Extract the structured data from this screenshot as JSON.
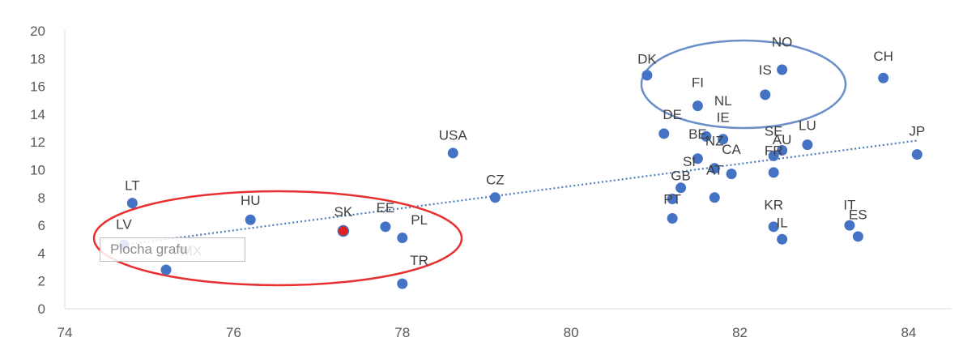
{
  "chart_data": {
    "type": "scatter",
    "xlim": [
      74,
      84.5
    ],
    "ylim": [
      0,
      20
    ],
    "x_ticks": [
      74,
      76,
      78,
      80,
      82,
      84
    ],
    "y_ticks": [
      0,
      2,
      4,
      6,
      8,
      10,
      12,
      14,
      16,
      18,
      20
    ],
    "grid": false,
    "trendline": {
      "style": "dotted",
      "color": "#4A7EBB",
      "from": [
        74.7,
        4.6
      ],
      "to": [
        84.1,
        12.1
      ]
    },
    "points": [
      {
        "label": "LT",
        "x": 74.8,
        "y": 7.6
      },
      {
        "label": "LV",
        "x": 74.7,
        "y": 4.6
      },
      {
        "label": "MX",
        "x": 75.2,
        "y": 2.8
      },
      {
        "label": "HU",
        "x": 76.2,
        "y": 6.4
      },
      {
        "label": "SK",
        "x": 77.3,
        "y": 5.6,
        "color": "#E02020"
      },
      {
        "label": "EE",
        "x": 77.8,
        "y": 5.9
      },
      {
        "label": "PL",
        "x": 78.0,
        "y": 5.1
      },
      {
        "label": "TR",
        "x": 78.0,
        "y": 1.8
      },
      {
        "label": "USA",
        "x": 78.6,
        "y": 11.2
      },
      {
        "label": "CZ",
        "x": 79.1,
        "y": 8.0
      },
      {
        "label": "DK",
        "x": 80.9,
        "y": 16.8
      },
      {
        "label": "DE",
        "x": 81.1,
        "y": 12.6
      },
      {
        "label": "GB",
        "x": 81.3,
        "y": 8.7
      },
      {
        "label": "PT",
        "x": 81.2,
        "y": 7.9
      },
      {
        "label": "",
        "x": 81.2,
        "y": 6.5
      },
      {
        "label": "SI",
        "x": 81.5,
        "y": 10.8
      },
      {
        "label": "FI",
        "x": 81.5,
        "y": 14.6
      },
      {
        "label": "BE",
        "x": 81.6,
        "y": 12.4
      },
      {
        "label": "NZ",
        "x": 81.8,
        "y": 12.2
      },
      {
        "label": "NL",
        "x": 81.7,
        "y": 10.1
      },
      {
        "label": "AT",
        "x": 81.7,
        "y": 8.0
      },
      {
        "label": "IE",
        "x": 81.9,
        "y": 9.7
      },
      {
        "label": "CA",
        "x": 82.3,
        "y": 15.4
      },
      {
        "label": "IS",
        "x": 82.5,
        "y": 17.2
      },
      {
        "label": "NO",
        "x": 82.5,
        "y": 11.4
      },
      {
        "label": "AU",
        "x": 82.4,
        "y": 11.0
      },
      {
        "label": "SE",
        "x": 82.4,
        "y": 9.8
      },
      {
        "label": "FR",
        "x": 82.4,
        "y": 5.9
      },
      {
        "label": "KR",
        "x": 82.5,
        "y": 5.0
      },
      {
        "label": "IL",
        "x": 82.8,
        "y": 11.8
      },
      {
        "label": "LU",
        "x": 83.3,
        "y": 6.0
      },
      {
        "label": "IT",
        "x": 83.4,
        "y": 5.2
      },
      {
        "label": "ES",
        "x": 83.7,
        "y": 16.6
      },
      {
        "label": "CH",
        "x": 84.1,
        "y": 11.1
      },
      {
        "label": "JP",
        "x": 81.7,
        "y": 10.1
      }
    ],
    "label_positions": {
      "LT": [
        74.8,
        8.9
      ],
      "LV": [
        74.7,
        6.1
      ],
      "MX": [
        75.5,
        4.2
      ],
      "HU": [
        76.2,
        7.8
      ],
      "SK": [
        77.3,
        7.0
      ],
      "EE": [
        77.8,
        7.3
      ],
      "PL": [
        78.2,
        6.4
      ],
      "TR": [
        78.2,
        3.5
      ],
      "USA": [
        78.6,
        12.5
      ],
      "CZ": [
        79.1,
        9.3
      ],
      "DK": [
        80.9,
        18.0
      ],
      "DE": [
        81.2,
        14.0
      ],
      "GB": [
        81.3,
        9.6
      ],
      "PT": [
        81.2,
        7.9
      ],
      "SI": [
        81.4,
        10.6
      ],
      "FI": [
        81.5,
        16.3
      ],
      "BE": [
        81.5,
        12.6
      ],
      "NZ": [
        81.7,
        12.1
      ],
      "NL": [
        81.8,
        15.0
      ],
      "AT": [
        81.7,
        10.0
      ],
      "IE": [
        81.8,
        13.8
      ],
      "CA": [
        81.9,
        11.5
      ],
      "IS": [
        82.3,
        17.2
      ],
      "NO": [
        82.5,
        19.2
      ],
      "AU": [
        82.5,
        12.2
      ],
      "SE": [
        82.4,
        12.8
      ],
      "FR": [
        82.4,
        11.4
      ],
      "KR": [
        82.4,
        7.5
      ],
      "IL": [
        82.5,
        6.2
      ],
      "LU": [
        82.8,
        13.2
      ],
      "IT": [
        83.3,
        7.5
      ],
      "ES": [
        83.4,
        6.8
      ],
      "CH": [
        83.7,
        18.2
      ],
      "JP": [
        84.1,
        12.8
      ]
    }
  },
  "tooltip": {
    "text": "Plocha grafu"
  }
}
